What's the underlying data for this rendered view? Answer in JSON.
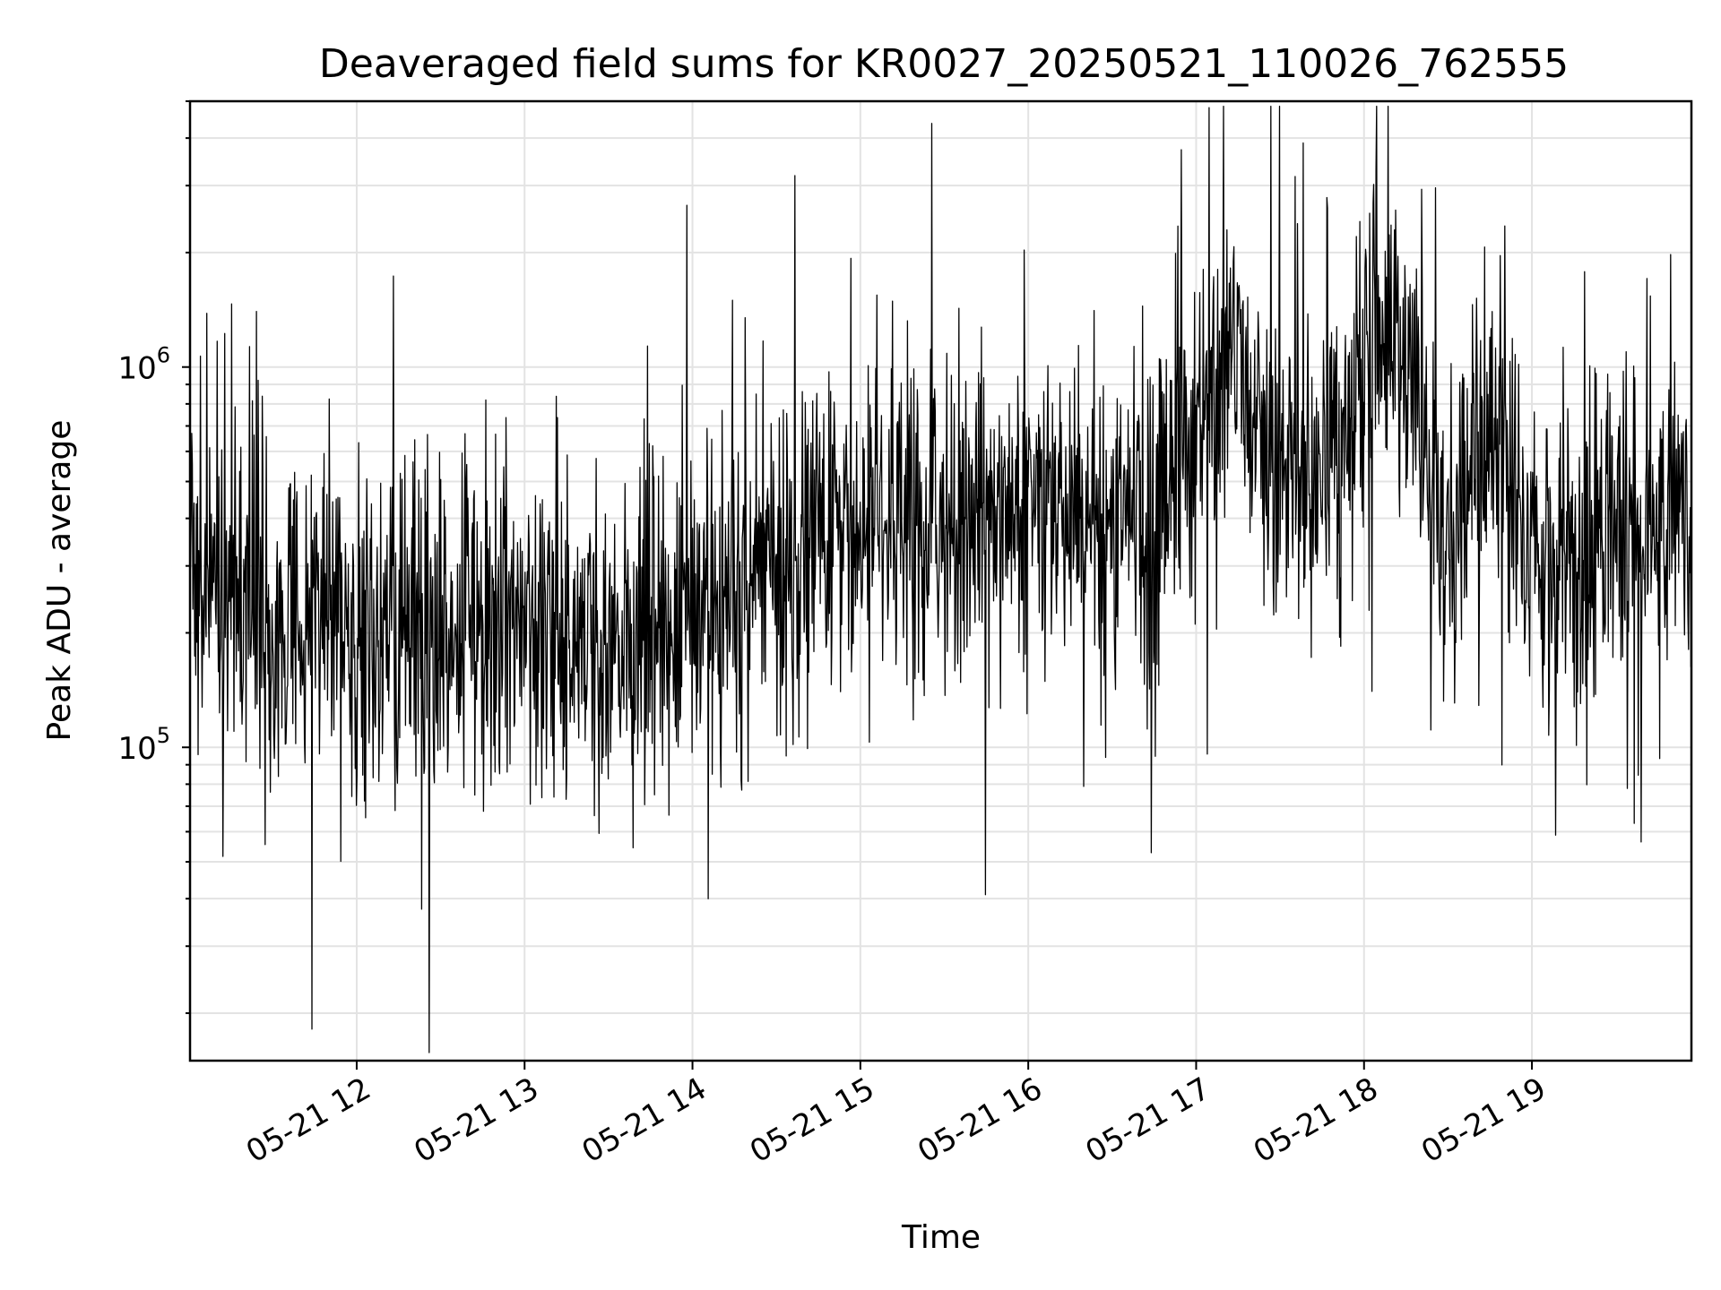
{
  "chart_data": {
    "type": "line",
    "title": "Deaveraged field sums for KR0027_20250521_110026_762555",
    "xlabel": "Time",
    "ylabel": "Peak ADU - average",
    "xlim": [
      "2025-05-21 11:00:26",
      "2025-05-21 19:57:00"
    ],
    "ylim": [
      15000,
      5000000
    ],
    "yscale": "log",
    "grid": true,
    "grid_color": "#e3e3e3",
    "line_color": "#000000",
    "x_ticks": [
      {
        "time": "2025-05-21 12:00",
        "label": "05-21 12"
      },
      {
        "time": "2025-05-21 13:00",
        "label": "05-21 13"
      },
      {
        "time": "2025-05-21 14:00",
        "label": "05-21 14"
      },
      {
        "time": "2025-05-21 15:00",
        "label": "05-21 15"
      },
      {
        "time": "2025-05-21 16:00",
        "label": "05-21 16"
      },
      {
        "time": "2025-05-21 17:00",
        "label": "05-21 17"
      },
      {
        "time": "2025-05-21 18:00",
        "label": "05-21 18"
      },
      {
        "time": "2025-05-21 19:00",
        "label": "05-21 19"
      }
    ],
    "y_major_ticks": [
      {
        "value": 100000,
        "base": "10",
        "exp": "5"
      },
      {
        "value": 1000000,
        "base": "10",
        "exp": "6"
      }
    ],
    "series": [
      {
        "x": [
          "2025-05-21 11:00",
          "2025-05-21 11:15",
          "2025-05-21 11:30",
          "2025-05-21 11:45",
          "2025-05-21 12:00",
          "2025-05-21 12:15",
          "2025-05-21 12:30",
          "2025-05-21 12:45",
          "2025-05-21 13:00",
          "2025-05-21 13:15",
          "2025-05-21 13:30",
          "2025-05-21 13:45",
          "2025-05-21 14:00",
          "2025-05-21 14:15",
          "2025-05-21 14:30",
          "2025-05-21 14:45",
          "2025-05-21 15:00",
          "2025-05-21 15:15",
          "2025-05-21 15:30",
          "2025-05-21 15:45",
          "2025-05-21 16:00",
          "2025-05-21 16:15",
          "2025-05-21 16:30",
          "2025-05-21 16:45",
          "2025-05-21 17:00",
          "2025-05-21 17:15",
          "2025-05-21 17:30",
          "2025-05-21 17:45",
          "2025-05-21 18:00",
          "2025-05-21 18:15",
          "2025-05-21 18:30",
          "2025-05-21 18:45",
          "2025-05-21 19:00",
          "2025-05-21 19:15",
          "2025-05-21 19:30",
          "2025-05-21 19:45",
          "2025-05-21 19:57"
        ],
        "y": [
          300000,
          230000,
          200000,
          220000,
          200000,
          210000,
          200000,
          230000,
          220000,
          200000,
          170000,
          190000,
          220000,
          260000,
          300000,
          330000,
          350000,
          370000,
          390000,
          400000,
          420000,
          430000,
          420000,
          400000,
          700000,
          900000,
          600000,
          450000,
          1000000,
          1200000,
          300000,
          700000,
          350000,
          300000,
          360000,
          380000,
          450000
        ]
      }
    ]
  }
}
